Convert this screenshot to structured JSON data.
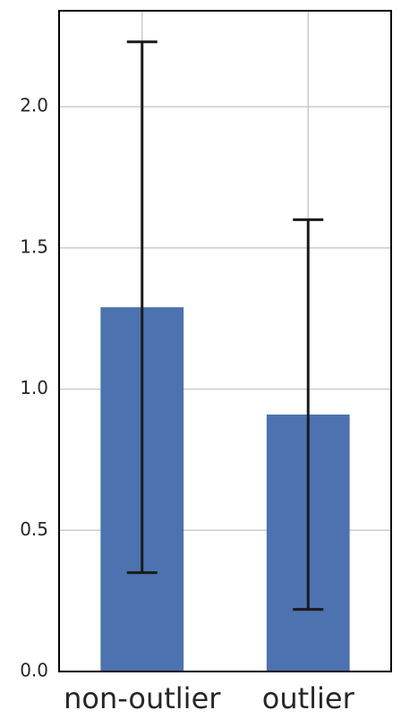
{
  "chart_data": {
    "type": "bar",
    "categories": [
      "non-outlier",
      "outlier"
    ],
    "values": [
      1.29,
      0.91
    ],
    "errors": [
      0.94,
      0.69
    ],
    "color": "#4c72b0",
    "error_color": "#1a1a1a",
    "ylim": [
      0,
      2.34
    ],
    "yticks": [
      {
        "value": 0,
        "label": "0.0"
      },
      0.5,
      {
        "value": 1,
        "label": "1.0"
      },
      1.5,
      {
        "value": 2,
        "label": "2.0"
      }
    ],
    "grid": true
  }
}
